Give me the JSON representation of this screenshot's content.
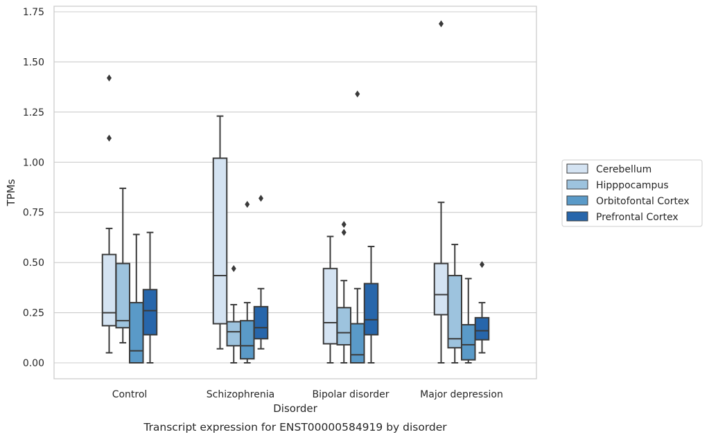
{
  "chart_data": {
    "type": "box",
    "caption": "Transcript expression for ENST00000584919 by disorder",
    "xlabel": "Disorder",
    "ylabel": "TPMs",
    "ylim": [
      -0.08,
      1.78
    ],
    "yticks": [
      0.0,
      0.25,
      0.5,
      0.75,
      1.0,
      1.25,
      1.5,
      1.75
    ],
    "ytick_labels": [
      "0.00",
      "0.25",
      "0.50",
      "0.75",
      "1.00",
      "1.25",
      "1.50",
      "1.75"
    ],
    "grid": true,
    "legend_position": "right",
    "categories": [
      "Control",
      "Schizophrenia",
      "Bipolar disorder",
      "Major depression"
    ],
    "series": [
      {
        "name": "Cerebellum",
        "color": "#d4e3f2",
        "boxes": [
          {
            "whislo": 0.05,
            "q1": 0.185,
            "med": 0.25,
            "q3": 0.54,
            "whishi": 0.67,
            "fliers": [
              1.12,
              1.42
            ]
          },
          {
            "whislo": 0.07,
            "q1": 0.195,
            "med": 0.435,
            "q3": 1.02,
            "whishi": 1.23,
            "fliers": []
          },
          {
            "whislo": 0.0,
            "q1": 0.095,
            "med": 0.2,
            "q3": 0.47,
            "whishi": 0.63,
            "fliers": []
          },
          {
            "whislo": 0.0,
            "q1": 0.24,
            "med": 0.34,
            "q3": 0.495,
            "whishi": 0.8,
            "fliers": [
              1.69
            ]
          }
        ]
      },
      {
        "name": "Hipppocampus",
        "color": "#9dc3de",
        "boxes": [
          {
            "whislo": 0.1,
            "q1": 0.175,
            "med": 0.21,
            "q3": 0.495,
            "whishi": 0.87,
            "fliers": []
          },
          {
            "whislo": 0.0,
            "q1": 0.085,
            "med": 0.155,
            "q3": 0.205,
            "whishi": 0.29,
            "fliers": [
              0.47
            ]
          },
          {
            "whislo": 0.0,
            "q1": 0.09,
            "med": 0.15,
            "q3": 0.275,
            "whishi": 0.41,
            "fliers": [
              0.65,
              0.69
            ]
          },
          {
            "whislo": 0.0,
            "q1": 0.075,
            "med": 0.12,
            "q3": 0.435,
            "whishi": 0.59,
            "fliers": []
          }
        ]
      },
      {
        "name": "Orbitofontal Cortex",
        "color": "#5a9ac8",
        "boxes": [
          {
            "whislo": 0.0,
            "q1": 0.0,
            "med": 0.06,
            "q3": 0.3,
            "whishi": 0.64,
            "fliers": []
          },
          {
            "whislo": 0.0,
            "q1": 0.02,
            "med": 0.085,
            "q3": 0.21,
            "whishi": 0.3,
            "fliers": [
              0.79
            ]
          },
          {
            "whislo": 0.0,
            "q1": 0.0,
            "med": 0.04,
            "q3": 0.195,
            "whishi": 0.37,
            "fliers": [
              1.34
            ]
          },
          {
            "whislo": 0.0,
            "q1": 0.015,
            "med": 0.09,
            "q3": 0.19,
            "whishi": 0.42,
            "fliers": []
          }
        ]
      },
      {
        "name": "Prefrontal Cortex",
        "color": "#2766ab",
        "boxes": [
          {
            "whislo": 0.0,
            "q1": 0.14,
            "med": 0.26,
            "q3": 0.365,
            "whishi": 0.65,
            "fliers": []
          },
          {
            "whislo": 0.07,
            "q1": 0.12,
            "med": 0.175,
            "q3": 0.28,
            "whishi": 0.37,
            "fliers": [
              0.82
            ]
          },
          {
            "whislo": 0.0,
            "q1": 0.14,
            "med": 0.215,
            "q3": 0.395,
            "whishi": 0.58,
            "fliers": []
          },
          {
            "whislo": 0.05,
            "q1": 0.115,
            "med": 0.16,
            "q3": 0.225,
            "whishi": 0.3,
            "fliers": [
              0.49
            ]
          }
        ]
      }
    ]
  }
}
